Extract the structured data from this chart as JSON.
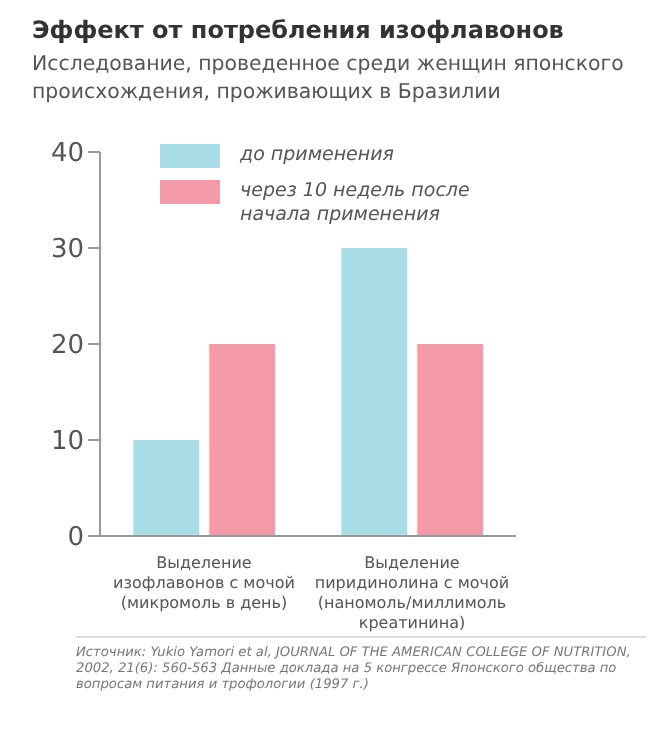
{
  "chart_data": {
    "type": "bar",
    "title": "Эффект от потребления изофлавонов",
    "subtitle": "Исследование, проведенное среди женщин японского происхождения, проживающих в Бразилии",
    "categories": [
      "Выделение изофлавонов с мочой (микромоль в день)",
      "Выделение пиридинолина с мочой (наномоль/миллимоль креатинина)"
    ],
    "series": [
      {
        "name": "до применения",
        "color": "#a8dde8",
        "values": [
          10,
          30
        ]
      },
      {
        "name": "через 10 недель после начала применения",
        "color": "#f49aa8",
        "values": [
          20,
          20
        ]
      }
    ],
    "ylim": [
      0,
      40
    ],
    "yticks": [
      0,
      10,
      20,
      30,
      40
    ],
    "grid": false,
    "legend": "top",
    "annotations": [
      "Источник: Yukio Yamori et al, JOURNAL OF THE AMERICAN COLLEGE OF NUTRITION, 2002, 21(6): 560-563 Данные доклада на 5 конгрессе Японского общества по вопросам питания и трофологии  (1997 г.)"
    ]
  }
}
